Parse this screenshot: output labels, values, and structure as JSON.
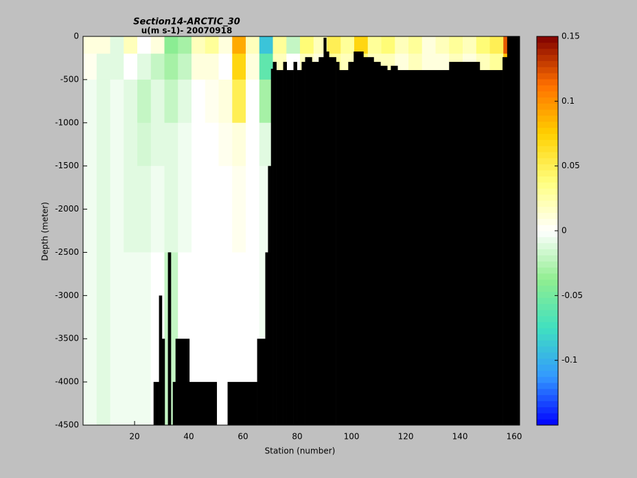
{
  "chart_data": {
    "type": "heatmap",
    "title": "Section14-ARCTIC_30",
    "subtitle": "u(m s-1)- 20070918",
    "x_label": "Station (number)",
    "y_label": "Depth (meter)",
    "xlim": [
      1,
      162
    ],
    "ylim": [
      -4500,
      0
    ],
    "xticks": [
      20,
      40,
      60,
      80,
      100,
      120,
      140,
      160
    ],
    "yticks": [
      0,
      -500,
      -1000,
      -1500,
      -2000,
      -2500,
      -3000,
      -3500,
      -4000,
      -4500
    ],
    "clim": [
      -0.15,
      0.15
    ],
    "cticks": [
      0.15,
      0.1,
      0.05,
      0,
      -0.05,
      -0.1
    ],
    "colormap": [
      "#0000ff",
      "#3399ff",
      "#40e0c0",
      "#90ee90",
      "#ffffff",
      "#ffff80",
      "#ffd000",
      "#ff7000",
      "#800000"
    ],
    "bottom_color": "#000000",
    "grid_x": [
      1,
      6,
      11,
      16,
      21,
      26,
      31,
      36,
      41,
      46,
      51,
      56,
      61,
      66,
      71,
      76,
      81,
      86,
      91,
      96,
      101,
      106,
      111,
      116,
      121,
      126,
      131,
      136,
      141,
      146,
      151,
      156,
      161
    ],
    "grid_depth": [
      0,
      -200,
      -500,
      -1000,
      -1500,
      -2500,
      -4500
    ],
    "u": [
      [
        0.01,
        0.01,
        -0.01,
        0.02,
        0.0,
        0.01,
        -0.04,
        -0.03,
        0.02,
        0.03,
        0.01,
        0.09,
        0.02,
        -0.09,
        0.03,
        -0.02,
        0.04,
        0.02,
        0.05,
        0.03,
        0.07,
        0.03,
        0.04,
        0.02,
        0.03,
        0.01,
        0.02,
        0.03,
        0.02,
        0.04,
        0.05,
        0.12
      ],
      [
        0.005,
        -0.01,
        -0.01,
        0.0,
        -0.01,
        -0.02,
        -0.03,
        -0.02,
        0.01,
        0.01,
        0.0,
        0.07,
        0.01,
        -0.06,
        0.02,
        0.0,
        0.02,
        0.01,
        0.03,
        0.02,
        0.04,
        0.02,
        0.02,
        0.01,
        0.02,
        0.01,
        0.01,
        0.02,
        0.01,
        0.02,
        0.03,
        0.08
      ],
      [
        -0.005,
        -0.01,
        -0.005,
        -0.01,
        -0.02,
        -0.01,
        -0.02,
        -0.01,
        0.0,
        0.005,
        0.01,
        0.05,
        0.0,
        -0.03,
        null,
        null,
        null,
        null,
        null,
        null,
        null,
        null,
        null,
        null,
        null,
        null,
        null,
        null,
        null,
        null,
        null,
        null
      ],
      [
        -0.005,
        -0.01,
        -0.005,
        -0.01,
        -0.015,
        -0.01,
        -0.01,
        -0.005,
        0.0,
        0.0,
        0.005,
        0.01,
        0.0,
        -0.01,
        null,
        null,
        null,
        null,
        null,
        null,
        null,
        null,
        null,
        null,
        null,
        null,
        null,
        null,
        null,
        null,
        null,
        null
      ],
      [
        -0.005,
        -0.01,
        -0.005,
        -0.01,
        -0.01,
        -0.005,
        -0.01,
        -0.005,
        0.0,
        0.0,
        0.0,
        0.005,
        0.0,
        -0.005,
        null,
        null,
        null,
        null,
        null,
        null,
        null,
        null,
        null,
        null,
        null,
        null,
        null,
        null,
        null,
        null,
        null,
        null
      ],
      [
        -0.005,
        -0.01,
        -0.005,
        -0.005,
        -0.005,
        0.0,
        -0.02,
        0.0,
        0.0,
        0.0,
        0.0,
        0.0,
        0.0,
        -0.005,
        null,
        null,
        null,
        null,
        null,
        null,
        null,
        null,
        null,
        null,
        null,
        null,
        null,
        null,
        null,
        null,
        null,
        null
      ]
    ],
    "bathymetry": {
      "x": [
        1,
        27.0,
        29.0,
        30.1,
        31.1,
        32.3,
        33.4,
        34.1,
        35.1,
        40.2,
        50.3,
        54.3,
        65.2,
        68.2,
        69.2,
        70.3,
        71.0,
        72.3,
        74.8,
        76.1,
        78.6,
        79.9,
        81.6,
        82.9,
        85.4,
        87.9,
        89.7,
        90.7,
        91.7,
        94.3,
        95.5,
        98.8,
        100.8,
        104.4,
        108.2,
        110.7,
        113.2,
        114.5,
        117.0,
        136.0,
        147.3,
        155.7,
        157.4
      ],
      "depth": [
        -4500,
        -4000,
        -3000,
        -3500,
        -4500,
        -2500,
        -4500,
        -4000,
        -3500,
        -4000,
        -4500,
        -4000,
        -3500,
        -2500,
        -1500,
        -375,
        -295,
        -390,
        -295,
        -390,
        -295,
        -390,
        -295,
        -240,
        -295,
        -240,
        -15,
        -175,
        -240,
        -295,
        -390,
        -295,
        -175,
        -240,
        -295,
        -340,
        -390,
        -340,
        -390,
        -295,
        -390,
        -240,
        0
      ]
    }
  }
}
